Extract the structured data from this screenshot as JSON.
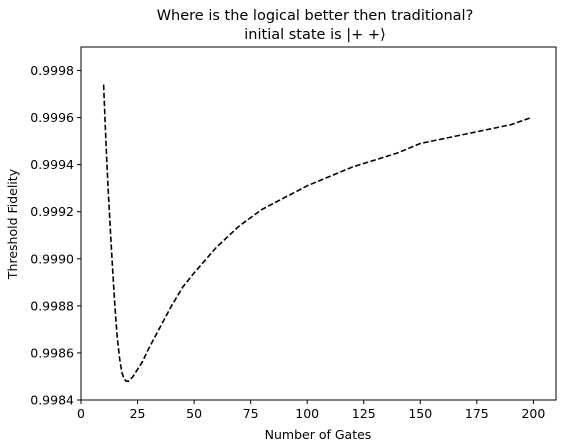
{
  "chart_data": {
    "type": "line",
    "title": "Where is the logical better then traditional?",
    "subtitle": "initial state is |+ +⟩",
    "xlabel": "Number of Gates",
    "ylabel": "Threshold Fidelity",
    "xlim": [
      0,
      210
    ],
    "ylim": [
      0.9984,
      0.9999
    ],
    "xticks": [
      0,
      25,
      50,
      75,
      100,
      125,
      150,
      175,
      200
    ],
    "xtick_labels": [
      "0",
      "25",
      "50",
      "75",
      "100",
      "125",
      "150",
      "175",
      "200"
    ],
    "yticks": [
      0.9984,
      0.9986,
      0.9988,
      0.999,
      0.9992,
      0.9994,
      0.9996,
      0.9998
    ],
    "ytick_labels": [
      "0.9984",
      "0.9986",
      "0.9988",
      "0.9990",
      "0.9992",
      "0.9994",
      "0.9996",
      "0.9998"
    ],
    "grid": false,
    "series": [
      {
        "color": "#000000",
        "line_style": "dashed",
        "x": [
          10,
          11,
          12,
          13,
          14,
          15,
          16,
          17,
          18,
          19,
          20,
          21,
          22,
          23,
          25,
          27,
          30,
          35,
          40,
          45,
          50,
          60,
          70,
          80,
          90,
          100,
          110,
          120,
          130,
          140,
          150,
          160,
          170,
          180,
          190,
          199
        ],
        "y": [
          0.99974,
          0.9995,
          0.9993,
          0.99912,
          0.99895,
          0.9988,
          0.99867,
          0.99858,
          0.99852,
          0.99849,
          0.99848,
          0.99848,
          0.99849,
          0.9985,
          0.99853,
          0.99856,
          0.99862,
          0.99871,
          0.9988,
          0.99888,
          0.99894,
          0.99905,
          0.99914,
          0.99921,
          0.99926,
          0.99931,
          0.99935,
          0.99939,
          0.99942,
          0.99945,
          0.99949,
          0.99951,
          0.99953,
          0.99955,
          0.99957,
          0.9996
        ]
      }
    ]
  }
}
